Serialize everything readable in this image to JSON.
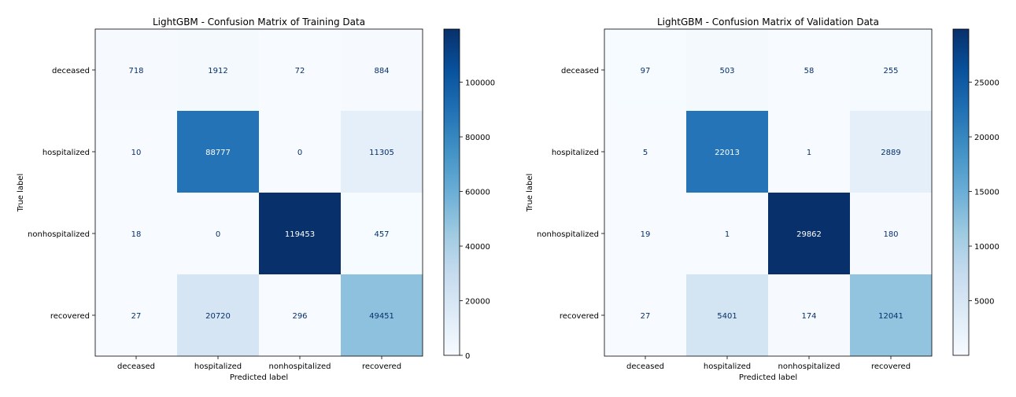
{
  "chart_data": [
    {
      "type": "heatmap",
      "title": "LightGBM - Confusion Matrix of Training Data",
      "xlabel": "Predicted label",
      "ylabel": "True label",
      "x_categories": [
        "deceased",
        "hospitalized",
        "nonhospitalized",
        "recovered"
      ],
      "y_categories": [
        "deceased",
        "hospitalized",
        "nonhospitalized",
        "recovered"
      ],
      "values": [
        [
          718,
          1912,
          72,
          884
        ],
        [
          10,
          88777,
          0,
          11305
        ],
        [
          18,
          0,
          119453,
          457
        ],
        [
          27,
          20720,
          296,
          49451
        ]
      ],
      "colormap": "Blues",
      "colorbar": {
        "min": 0,
        "max": 119453,
        "ticks": [
          0,
          20000,
          40000,
          60000,
          80000,
          100000
        ]
      }
    },
    {
      "type": "heatmap",
      "title": "LightGBM - Confusion Matrix of Validation Data",
      "xlabel": "Predicted label",
      "ylabel": "True label",
      "x_categories": [
        "deceased",
        "hospitalized",
        "nonhospitalized",
        "recovered"
      ],
      "y_categories": [
        "deceased",
        "hospitalized",
        "nonhospitalized",
        "recovered"
      ],
      "values": [
        [
          97,
          503,
          58,
          255
        ],
        [
          5,
          22013,
          1,
          2889
        ],
        [
          19,
          1,
          29862,
          180
        ],
        [
          27,
          5401,
          174,
          12041
        ]
      ],
      "colormap": "Blues",
      "colorbar": {
        "min": 1,
        "max": 29862,
        "ticks": [
          5000,
          10000,
          15000,
          20000,
          25000
        ]
      }
    }
  ]
}
